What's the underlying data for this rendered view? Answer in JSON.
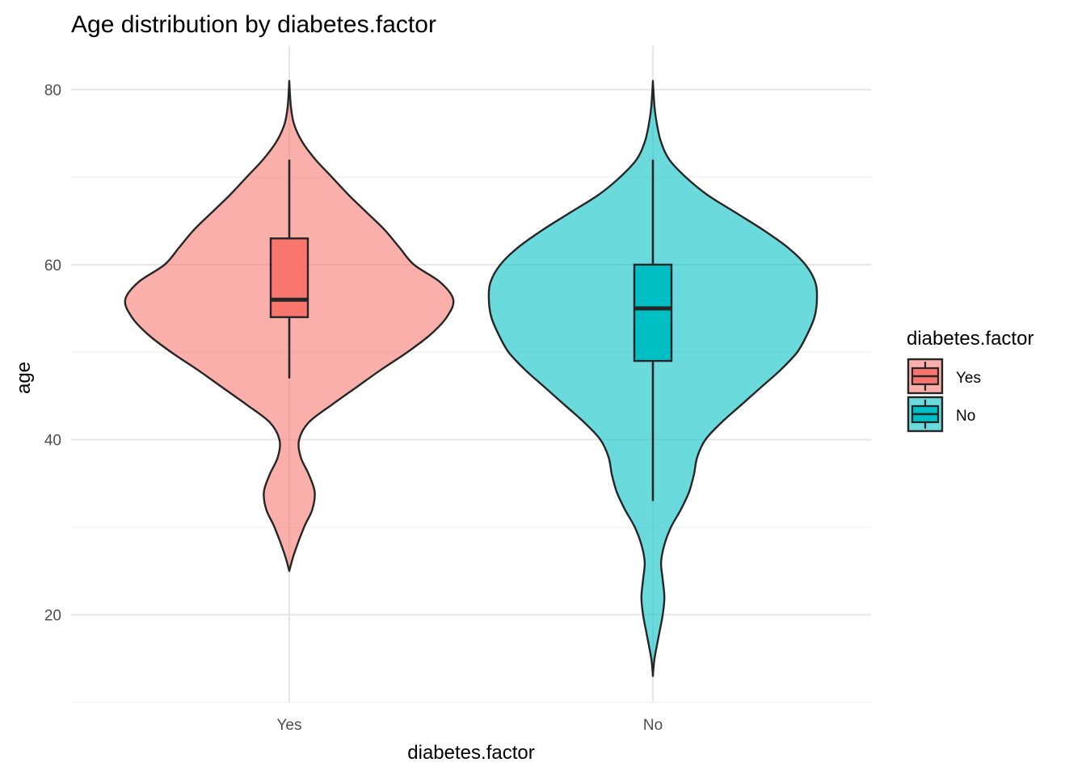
{
  "chart_data": {
    "type": "violin",
    "title": "Age distribution by diabetes.factor",
    "xlabel": "diabetes.factor",
    "ylabel": "age",
    "categories": [
      "Yes",
      "No"
    ],
    "ylim": [
      10,
      85
    ],
    "yticks": [
      20,
      40,
      60,
      80
    ],
    "grid": true,
    "legend": {
      "title": "diabetes.factor",
      "placement": "right",
      "entries": [
        "Yes",
        "No"
      ]
    },
    "colors": {
      "Yes": "#F8766D",
      "No": "#00BFC4",
      "outline": "#262626"
    },
    "series": [
      {
        "name": "Yes",
        "boxplot": {
          "whisker_low": 47,
          "q1": 54,
          "median": 56,
          "q3": 63,
          "whisker_high": 72
        },
        "range": [
          25,
          81
        ],
        "density": [
          {
            "age": 25,
            "density": 0
          },
          {
            "age": 27,
            "density": 0.03
          },
          {
            "age": 30,
            "density": 0.09
          },
          {
            "age": 32,
            "density": 0.14
          },
          {
            "age": 34,
            "density": 0.155
          },
          {
            "age": 36,
            "density": 0.12
          },
          {
            "age": 38,
            "density": 0.07
          },
          {
            "age": 40,
            "density": 0.06
          },
          {
            "age": 42,
            "density": 0.12
          },
          {
            "age": 44,
            "density": 0.26
          },
          {
            "age": 46,
            "density": 0.41
          },
          {
            "age": 48,
            "density": 0.56
          },
          {
            "age": 50,
            "density": 0.72
          },
          {
            "age": 52,
            "density": 0.86
          },
          {
            "age": 54,
            "density": 0.96
          },
          {
            "age": 56,
            "density": 1.0
          },
          {
            "age": 58,
            "density": 0.92
          },
          {
            "age": 60,
            "density": 0.76
          },
          {
            "age": 62,
            "density": 0.67
          },
          {
            "age": 64,
            "density": 0.58
          },
          {
            "age": 66,
            "density": 0.47
          },
          {
            "age": 68,
            "density": 0.36
          },
          {
            "age": 70,
            "density": 0.26
          },
          {
            "age": 72,
            "density": 0.16
          },
          {
            "age": 74,
            "density": 0.08
          },
          {
            "age": 76,
            "density": 0.03
          },
          {
            "age": 78,
            "density": 0.01
          },
          {
            "age": 81,
            "density": 0
          }
        ]
      },
      {
        "name": "No",
        "boxplot": {
          "whisker_low": 33,
          "q1": 49,
          "median": 55,
          "q3": 60,
          "whisker_high": 72
        },
        "range": [
          13,
          81
        ],
        "density": [
          {
            "age": 13,
            "density": 0
          },
          {
            "age": 15,
            "density": 0.01
          },
          {
            "age": 18,
            "density": 0.04
          },
          {
            "age": 20,
            "density": 0.06
          },
          {
            "age": 22,
            "density": 0.07
          },
          {
            "age": 24,
            "density": 0.06
          },
          {
            "age": 26,
            "density": 0.05
          },
          {
            "age": 28,
            "density": 0.07
          },
          {
            "age": 30,
            "density": 0.11
          },
          {
            "age": 32,
            "density": 0.17
          },
          {
            "age": 34,
            "density": 0.22
          },
          {
            "age": 36,
            "density": 0.25
          },
          {
            "age": 38,
            "density": 0.27
          },
          {
            "age": 40,
            "density": 0.32
          },
          {
            "age": 42,
            "density": 0.42
          },
          {
            "age": 44,
            "density": 0.54
          },
          {
            "age": 46,
            "density": 0.66
          },
          {
            "age": 48,
            "density": 0.78
          },
          {
            "age": 50,
            "density": 0.88
          },
          {
            "age": 52,
            "density": 0.94
          },
          {
            "age": 54,
            "density": 0.985
          },
          {
            "age": 56,
            "density": 1.0
          },
          {
            "age": 58,
            "density": 0.99
          },
          {
            "age": 60,
            "density": 0.93
          },
          {
            "age": 62,
            "density": 0.82
          },
          {
            "age": 64,
            "density": 0.67
          },
          {
            "age": 66,
            "density": 0.5
          },
          {
            "age": 68,
            "density": 0.33
          },
          {
            "age": 70,
            "density": 0.2
          },
          {
            "age": 72,
            "density": 0.1
          },
          {
            "age": 74,
            "density": 0.05
          },
          {
            "age": 76,
            "density": 0.025
          },
          {
            "age": 78,
            "density": 0.01
          },
          {
            "age": 81,
            "density": 0
          }
        ]
      }
    ]
  }
}
